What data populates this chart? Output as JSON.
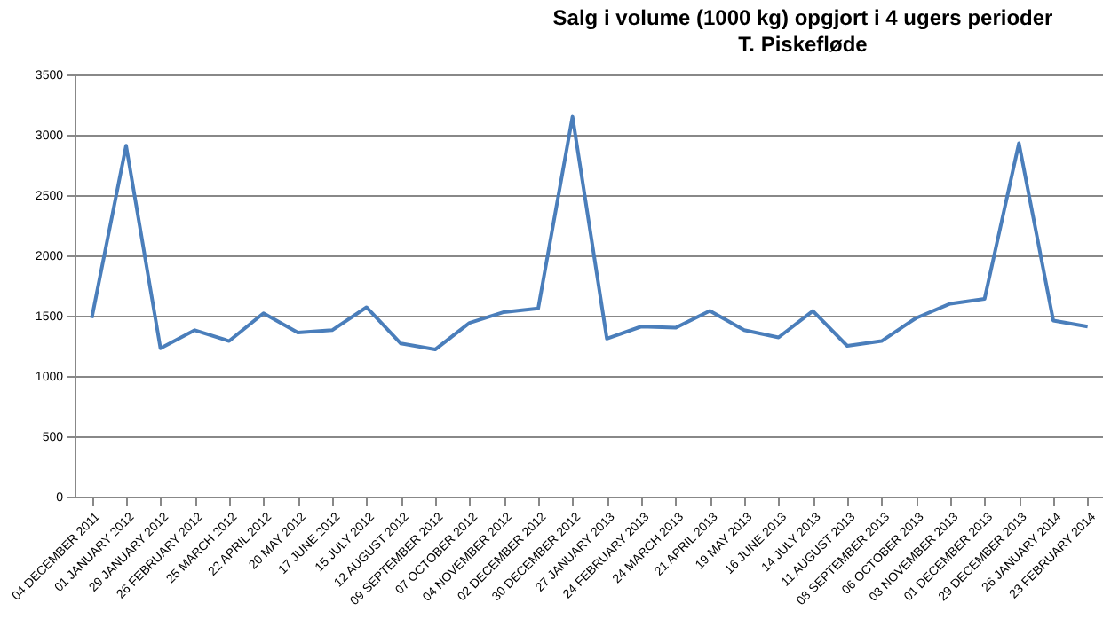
{
  "chart_data": {
    "type": "line",
    "title": "Salg i volume  (1000 kg) opgjort i 4 ugers perioder",
    "subtitle": "T. Piskefløde",
    "categories": [
      "04 DECEMBER 2011",
      "01 JANUARY 2012",
      "29 JANUARY 2012",
      "26 FEBRUARY 2012",
      "25 MARCH 2012",
      "22 APRIL 2012",
      "20 MAY 2012",
      "17 JUNE 2012",
      "15 JULY 2012",
      "12 AUGUST 2012",
      "09 SEPTEMBER 2012",
      "07 OCTOBER 2012",
      "04 NOVEMBER 2012",
      "02 DECEMBER 2012",
      "30 DECEMBER 2012",
      "27 JANUARY 2013",
      "24 FEBRUARY 2013",
      "24 MARCH 2013",
      "21 APRIL 2013",
      "19 MAY 2013",
      "16 JUNE 2013",
      "14 JULY 2013",
      "11 AUGUST 2013",
      "08 SEPTEMBER 2013",
      "06 OCTOBER 2013",
      "03 NOVEMBER 2013",
      "01 DECEMBER 2013",
      "29 DECEMBER 2013",
      "26 JANUARY 2014",
      "23 FEBRUARY 2014"
    ],
    "series": [
      {
        "color": "#4a7ebb",
        "values": [
          1480,
          2910,
          1230,
          1380,
          1290,
          1520,
          1360,
          1380,
          1570,
          1270,
          1220,
          1440,
          1530,
          1560,
          3150,
          1310,
          1410,
          1400,
          1540,
          1380,
          1320,
          1540,
          1250,
          1290,
          1480,
          1600,
          1640,
          2930,
          1460,
          1410
        ]
      }
    ],
    "ylim": [
      0,
      3500
    ],
    "yticks": [
      0,
      500,
      1000,
      1500,
      2000,
      2500,
      3000,
      3500
    ],
    "grid": "y",
    "marker": "none",
    "line_style": "solid"
  }
}
